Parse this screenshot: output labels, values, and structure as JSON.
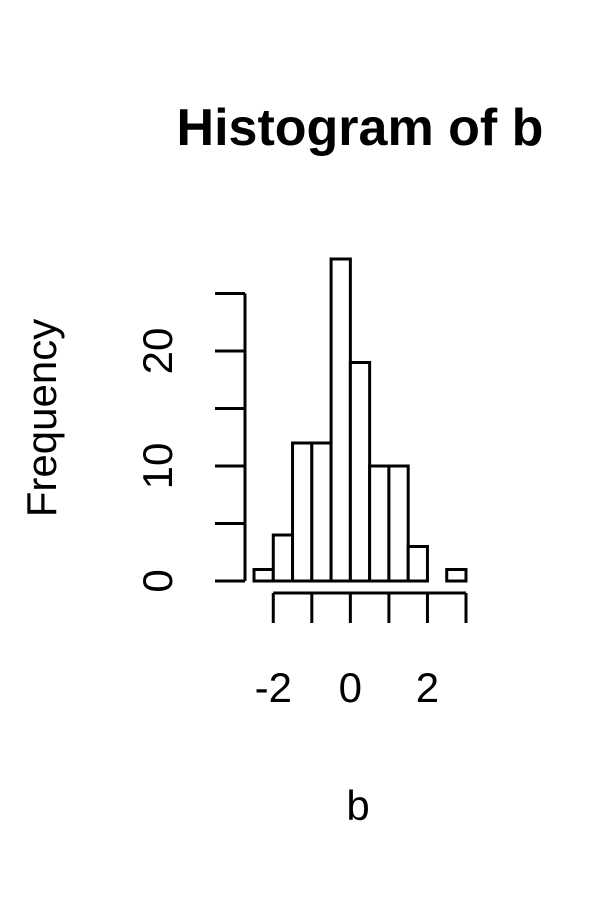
{
  "chart_data": {
    "type": "bar",
    "title": "Histogram of b",
    "xlabel": "b",
    "ylabel": "Frequency",
    "bin_edges": [
      -2.5,
      -2.0,
      -1.5,
      -1.0,
      -0.5,
      0.0,
      0.5,
      1.0,
      1.5,
      2.0,
      2.5,
      3.0
    ],
    "counts": [
      1,
      4,
      12,
      12,
      28,
      19,
      10,
      10,
      3,
      0,
      1
    ],
    "x_ticks": [
      -2,
      -1,
      0,
      1,
      2,
      3
    ],
    "x_tick_labels": [
      "-2",
      "0",
      "2"
    ],
    "y_ticks": [
      0,
      5,
      10,
      15,
      20,
      25
    ],
    "y_tick_labels": [
      "0",
      "10",
      "20"
    ],
    "xlim": [
      -2.5,
      3.0
    ],
    "ylim": [
      0,
      28
    ],
    "grid": false,
    "colors": {
      "bar_fill": "#ffffff",
      "bar_stroke": "#000000"
    }
  }
}
